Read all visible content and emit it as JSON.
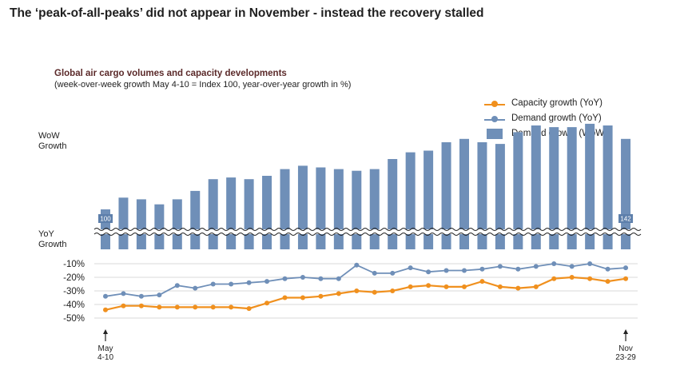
{
  "headline": "The ‘peak-of-all-peaks’ did not appear in November - instead the recovery stalled",
  "chart_data": {
    "type": "bar+line",
    "title": "Global air cargo volumes and capacity developments",
    "subtitle": "(week-over-week growth May 4-10 = Index 100, year-over-year growth in %)",
    "wow_axis_label": "WoW Growth",
    "yoy_axis_label": "YoY Growth",
    "yoy_ticks": [
      "-10%",
      "-20%",
      "-30%",
      "-40%",
      "-50%"
    ],
    "yoy_tick_values": [
      -10,
      -20,
      -30,
      -40,
      -50
    ],
    "x_start_label": [
      "May",
      "4-10"
    ],
    "x_end_label": [
      "Nov",
      "23-29"
    ],
    "weeks": 30,
    "legend_position": "top-right",
    "series": [
      {
        "name": "Capacity growth (YoY)",
        "type": "line",
        "color": "#f0901e",
        "values": [
          -44,
          -41,
          -41,
          -42,
          -42,
          -42,
          -42,
          -42,
          -43,
          -39,
          -35,
          -35,
          -34,
          -32,
          -30,
          -31,
          -30,
          -27,
          -26,
          -27,
          -27,
          -23,
          -27,
          -28,
          -27,
          -21,
          -20,
          -21,
          -23,
          -21
        ]
      },
      {
        "name": "Demand growth (YoY)",
        "type": "line",
        "color": "#6f8fb8",
        "values": [
          -34,
          -32,
          -34,
          -33,
          -26,
          -28,
          -25,
          -25,
          -24,
          -23,
          -21,
          -20,
          -21,
          -21,
          -11,
          -17,
          -17,
          -13,
          -16,
          -15,
          -15,
          -14,
          -12,
          -14,
          -12,
          -10,
          -12,
          -10,
          -14,
          -13
        ]
      },
      {
        "name": "Demand growth (WoW)",
        "type": "bar",
        "color": "#6f8fb8",
        "values": [
          100,
          107,
          106,
          103,
          106,
          111,
          118,
          119,
          118,
          120,
          124,
          126,
          125,
          124,
          123,
          124,
          130,
          134,
          135,
          140,
          142,
          140,
          139,
          146,
          150,
          149,
          149,
          151,
          150,
          142
        ],
        "data_labels": {
          "0": "100",
          "29": "142"
        }
      }
    ]
  }
}
